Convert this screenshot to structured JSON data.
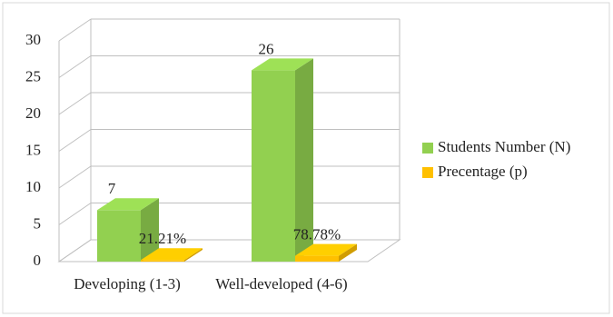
{
  "chart_data": {
    "type": "bar3d",
    "categories": [
      "Developing (1-3)",
      "Well-developed (4-6)"
    ],
    "series": [
      {
        "name": "Students Number (N)",
        "color": "#92d050",
        "values": [
          7,
          26
        ]
      },
      {
        "name": "Precentage (p)",
        "color": "#ffc000",
        "values": [
          0.2121,
          0.7878
        ],
        "value_labels": [
          "21.21%",
          "78.78%"
        ]
      }
    ],
    "ylim": [
      0,
      30
    ],
    "yticks": [
      0,
      5,
      10,
      15,
      20,
      25,
      30
    ],
    "grid": true,
    "legend": "right"
  }
}
